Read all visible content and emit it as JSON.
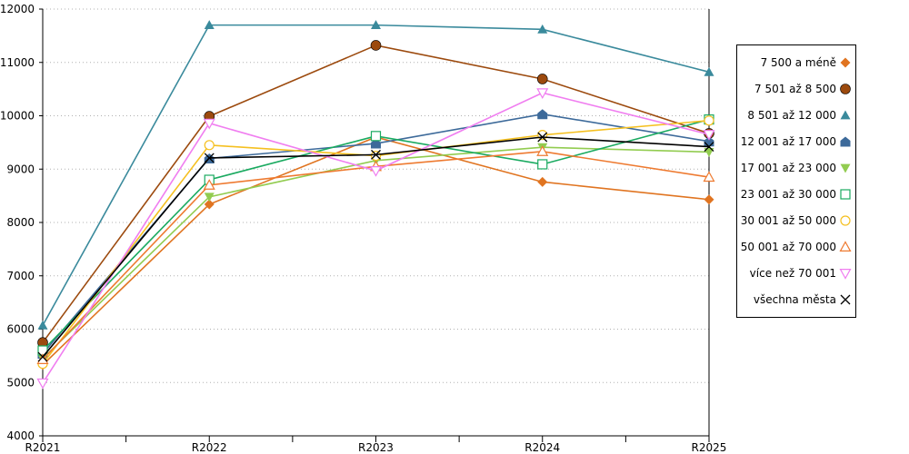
{
  "chart_data": {
    "type": "line",
    "title": "",
    "xlabel": "",
    "ylabel": "",
    "categories": [
      "R2021",
      "R2022",
      "R2023",
      "R2024",
      "R2025"
    ],
    "ylim": [
      4000,
      12000
    ],
    "yticks": [
      4000,
      5000,
      6000,
      7000,
      8000,
      9000,
      10000,
      11000,
      12000
    ],
    "grid": "horizontal-dotted",
    "legend": "right",
    "series": [
      {
        "name": "7 500 a méně",
        "color": "#e07420",
        "marker": "diamond",
        "values": [
          5330,
          8340,
          9600,
          8760,
          8430
        ]
      },
      {
        "name": "7 501 až 8 500",
        "color": "#9c4a0e",
        "marker": "circle",
        "values": [
          5750,
          9990,
          11320,
          10690,
          9670
        ]
      },
      {
        "name": "8 501 až 12 000",
        "color": "#3a8a9c",
        "marker": "triangle-up",
        "values": [
          6070,
          11700,
          11700,
          11620,
          10820
        ]
      },
      {
        "name": "12 001 až 17 000",
        "color": "#3d6a9a",
        "marker": "house",
        "values": [
          5540,
          9200,
          9480,
          10030,
          9520
        ]
      },
      {
        "name": "17 001 až 23 000",
        "color": "#92cc50",
        "marker": "triangle-down",
        "values": [
          5450,
          8480,
          9160,
          9410,
          9320
        ]
      },
      {
        "name": "23 001 až 30 000",
        "color": "#1aaa60",
        "marker": "square-open",
        "values": [
          5600,
          8800,
          9620,
          9090,
          9930
        ]
      },
      {
        "name": "30 001 až 50 000",
        "color": "#f5c020",
        "marker": "circle-open",
        "values": [
          5350,
          9450,
          9250,
          9640,
          9910
        ]
      },
      {
        "name": "50 001 až 70 000",
        "color": "#ee7a30",
        "marker": "triangle-open",
        "values": [
          5430,
          8700,
          9050,
          9330,
          8850
        ]
      },
      {
        "name": "více než 70 001",
        "color": "#f07ef0",
        "marker": "triangle-down-open",
        "values": [
          4990,
          9860,
          8970,
          10430,
          9650
        ]
      },
      {
        "name": "všechna města",
        "color": "#000000",
        "marker": "x",
        "values": [
          5480,
          9210,
          9270,
          9600,
          9420
        ]
      }
    ]
  }
}
